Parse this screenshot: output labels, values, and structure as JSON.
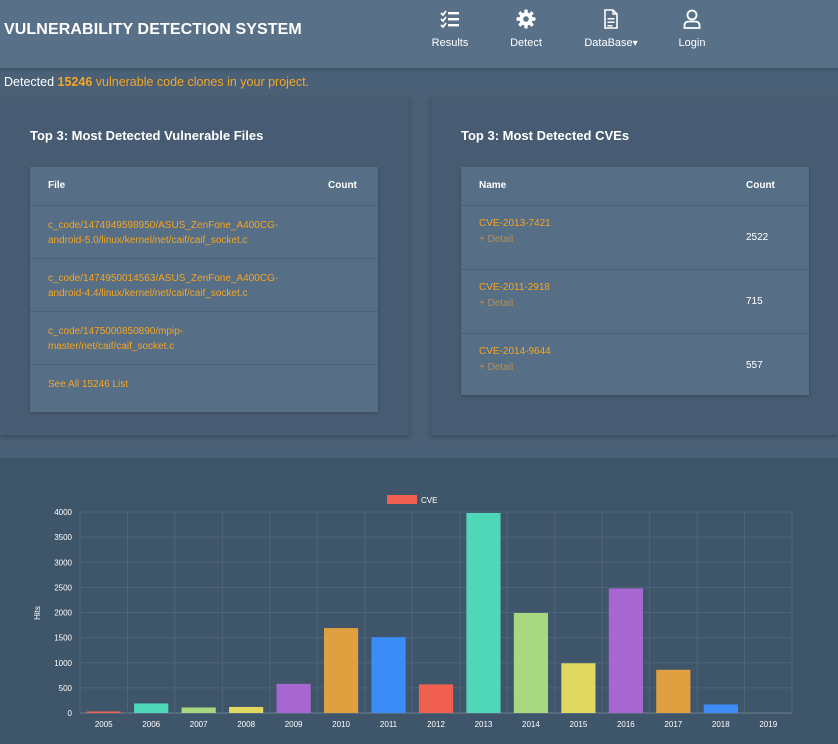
{
  "app": {
    "title": "VULNERABILITY DETECTION SYSTEM"
  },
  "nav": [
    {
      "label": "Results",
      "icon": "list-check-icon"
    },
    {
      "label": "Detect",
      "icon": "gear-icon"
    },
    {
      "label": "DataBase",
      "icon": "document-icon",
      "caret": "▾"
    },
    {
      "label": "Login",
      "icon": "user-icon"
    }
  ],
  "summary": {
    "prefix": "Detected",
    "count": "15246",
    "suffix": "vulnerable code clones in your project."
  },
  "files_panel": {
    "title": "Top 3: Most Detected Vulnerable Files",
    "col_file": "File",
    "col_count": "Count",
    "rows": [
      {
        "path": "c_code/1474949598950/ASUS_ZenFone_A400CG-android-5.0/linux/kernel/net/caif/caif_socket.c"
      },
      {
        "path": "c_code/1474950014563/ASUS_ZenFone_A400CG-android-4.4/linux/kernel/net/caif/caif_socket.c"
      },
      {
        "path": "c_code/1475000850890/mpip-master/net/caif/caif_socket.c"
      }
    ],
    "see_all": "See All 15246 List"
  },
  "cve_panel": {
    "title": "Top 3: Most Detected CVEs",
    "col_name": "Name",
    "col_count": "Count",
    "rows": [
      {
        "name": "CVE-2013-7421",
        "detail": "+ Detail",
        "count": "2522"
      },
      {
        "name": "CVE-2011-2918",
        "detail": "+ Detail",
        "count": "715"
      },
      {
        "name": "CVE-2014-9644",
        "detail": "+ Detail",
        "count": "557"
      }
    ]
  },
  "chart_data": {
    "type": "bar",
    "legend": "CVE",
    "legend_color": "#f06050",
    "ylabel": "Hits",
    "xlabel": "",
    "ylim": [
      0,
      4000
    ],
    "yticks": [
      0,
      500,
      1000,
      1500,
      2000,
      2500,
      3000,
      3500,
      4000
    ],
    "grid": true,
    "categories": [
      "2005",
      "2006",
      "2007",
      "2008",
      "2009",
      "2010",
      "2011",
      "2012",
      "2013",
      "2014",
      "2015",
      "2016",
      "2017",
      "2018",
      "2019"
    ],
    "values": [
      30,
      190,
      110,
      120,
      580,
      1690,
      1510,
      570,
      3980,
      1990,
      990,
      2480,
      860,
      170,
      0
    ],
    "colors": [
      "#f06050",
      "#4fd8b8",
      "#a8d880",
      "#e0d860",
      "#a668d0",
      "#e0a040",
      "#3c8cf8",
      "#f06050",
      "#4fd8b8",
      "#a8d880",
      "#e0d860",
      "#a668d0",
      "#e0a040",
      "#3c8cf8",
      "#f06050"
    ]
  }
}
